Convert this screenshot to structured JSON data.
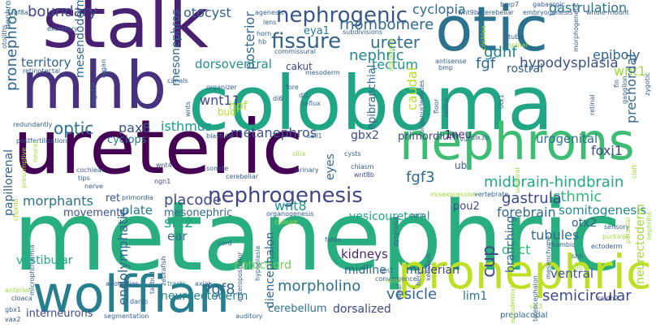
{
  "words": [
    {
      "id": "metanephric",
      "text": "metanephric",
      "color": "#29af7f"
    },
    {
      "id": "coloboma",
      "text": "coloboma",
      "color": "#21a685"
    },
    {
      "id": "ureteric",
      "text": "ureteric",
      "color": "#440154"
    },
    {
      "id": "mhb",
      "text": "mhb",
      "color": "#46327e"
    },
    {
      "id": "stalk",
      "text": "stalk",
      "color": "#482173"
    },
    {
      "id": "otic",
      "text": "otic",
      "color": "#2c728e"
    },
    {
      "id": "nephrons",
      "text": "nephrons",
      "color": "#3fbc73"
    },
    {
      "id": "wolffian",
      "text": "wolffian",
      "color": "#277f8e"
    },
    {
      "id": "pronephric",
      "text": "pronephric",
      "color": "#bddf26"
    },
    {
      "id": "nephrogenesis",
      "text": "nephrogenesis",
      "color": "#404688"
    },
    {
      "id": "nephrogenic",
      "text": "nephrogenic",
      "color": "#39568c"
    },
    {
      "id": "fissure",
      "text": "fissure",
      "color": "#33638d"
    },
    {
      "id": "ureter",
      "text": "ureter",
      "color": "#2c728e"
    },
    {
      "id": "rhombomere",
      "text": "rhombomere",
      "color": "#31688e"
    },
    {
      "id": "gastrulation",
      "text": "gastrulation",
      "color": "#2a788e"
    },
    {
      "id": "cyclopia",
      "text": "cyclopia",
      "color": "#31688e"
    },
    {
      "id": "boundary",
      "text": "boundary",
      "color": "#404688"
    },
    {
      "id": "otocyst",
      "text": "otocyst",
      "color": "#33638d"
    },
    {
      "id": "eya1",
      "text": "eya1",
      "color": "#2a788e"
    },
    {
      "id": "gdnf",
      "text": "gdnf",
      "color": "#26828e"
    },
    {
      "id": "epiboly",
      "text": "epiboly",
      "color": "#31688e"
    },
    {
      "id": "nephric",
      "text": "nephric",
      "color": "#23898e"
    },
    {
      "id": "wnt1",
      "text": "wnt1",
      "color": "#9fda3a"
    },
    {
      "id": "territory",
      "text": "territory",
      "color": "#33638d"
    },
    {
      "id": "fgf",
      "text": "fgf",
      "color": "#31688e"
    },
    {
      "id": "hypodysplasia",
      "text": "hypodysplasia",
      "color": "#3b528b"
    },
    {
      "id": "rostral",
      "text": "rostral",
      "color": "#35608d"
    },
    {
      "id": "tectum",
      "text": "tectum",
      "color": "#1f948c"
    },
    {
      "id": "dorsoventral",
      "text": "dorsoventral",
      "color": "#238a8d"
    },
    {
      "id": "cakut",
      "text": "cakut",
      "color": "#3e4989"
    },
    {
      "id": "wnt11",
      "text": "wnt11",
      "color": "#3e4989"
    },
    {
      "id": "hpf",
      "text": "hpf",
      "color": "#b5de2b"
    },
    {
      "id": "bud",
      "text": "bud",
      "color": "#b5de2b"
    },
    {
      "id": "optic",
      "text": "optic",
      "color": "#2d708e"
    },
    {
      "id": "pax8",
      "text": "pax8",
      "color": "#3b528b"
    },
    {
      "id": "isthmus",
      "text": "isthmus",
      "color": "#1f9a8a"
    },
    {
      "id": "metanephros",
      "text": "metanephros",
      "color": "#3b528b"
    },
    {
      "id": "cyclops",
      "text": "cyclops",
      "color": "#2c728e"
    },
    {
      "id": "gbx2",
      "text": "gbx2",
      "color": "#3e4989"
    },
    {
      "id": "primordium",
      "text": "primordium",
      "color": "#3e4989"
    },
    {
      "id": "1neu",
      "text": "1neu",
      "color": "#482677"
    },
    {
      "id": "urogenital",
      "text": "urogenital",
      "color": "#2c728e"
    },
    {
      "id": "foxi1",
      "text": "foxi1",
      "color": "#3e4989"
    },
    {
      "id": "nephrons2",
      "text": "fgf3",
      "color": "#31688e"
    },
    {
      "id": "midbrain",
      "text": "midbrain-hindbrain",
      "color": "#22a884"
    },
    {
      "id": "isthmic",
      "text": "isthmic",
      "color": "#35b779"
    },
    {
      "id": "morphants",
      "text": "morphants",
      "color": "#2c728e"
    },
    {
      "id": "ret",
      "text": "ret",
      "color": "#3b528b"
    },
    {
      "id": "placode",
      "text": "placode",
      "color": "#3e4989"
    },
    {
      "id": "wnt8",
      "text": "wnt8",
      "color": "#1f948c"
    },
    {
      "id": "gastrula",
      "text": "gastrula",
      "color": "#3e4989"
    },
    {
      "id": "pou2",
      "text": "pou2",
      "color": "#3e4989"
    },
    {
      "id": "somitogenesis",
      "text": "somitogenesis",
      "color": "#23888e"
    },
    {
      "id": "movements",
      "text": "movements",
      "color": "#3b528b"
    },
    {
      "id": "plate",
      "text": "plate",
      "color": "#2a788e"
    },
    {
      "id": "mesonephric",
      "text": "mesonephric",
      "color": "#31688e"
    },
    {
      "id": "vesicoureteral",
      "text": "vesicoureteral",
      "color": "#20a486"
    },
    {
      "id": "forebrain",
      "text": "forebrain",
      "color": "#31688e"
    },
    {
      "id": "otx2",
      "text": "otx2",
      "color": "#33638d"
    },
    {
      "id": "six2",
      "text": "six2",
      "color": "#22a884"
    },
    {
      "id": "ear",
      "text": "ear",
      "color": "#31688e"
    },
    {
      "id": "tubules",
      "text": "tubules",
      "color": "#31688e"
    },
    {
      "id": "duct",
      "text": "duct",
      "color": "#35b779"
    },
    {
      "id": "kidneys",
      "text": "kidneys",
      "color": "#482677"
    },
    {
      "id": "vestibular",
      "text": "vestibular",
      "color": "#22a884"
    },
    {
      "id": "notochord",
      "text": "notochord",
      "color": "#6ccd5a"
    },
    {
      "id": "midline",
      "text": "midline",
      "color": "#33638d"
    },
    {
      "id": "mullerian",
      "text": "mullerian",
      "color": "#3e4989"
    },
    {
      "id": "ventral",
      "text": "ventral",
      "color": "#3b528b"
    },
    {
      "id": "morpholino",
      "text": "morpholino",
      "color": "#2c728e"
    },
    {
      "id": "fgf8",
      "text": "fgf8",
      "color": "#31688e"
    },
    {
      "id": "vesicle",
      "text": "vesicle",
      "color": "#33638d"
    },
    {
      "id": "lim1",
      "text": "lim1",
      "color": "#2c728e"
    },
    {
      "id": "semicircular",
      "text": "semicircular",
      "color": "#3e4989"
    },
    {
      "id": "neuroectoderm",
      "text": "neuroectoderm",
      "color": "#26828e"
    },
    {
      "id": "cerebellum",
      "text": "cerebellum",
      "color": "#2c728e"
    },
    {
      "id": "dorsalized",
      "text": "dorsalized",
      "color": "#3e4989"
    },
    {
      "id": "interneurons",
      "text": "interneurons",
      "color": "#3e4989"
    },
    {
      "id": "preplacodal",
      "text": "preplacodal",
      "color": "#31688e"
    },
    {
      "id": "segmentation",
      "text": "segmentation",
      "color": "#35608d"
    },
    {
      "id": "auditory",
      "text": "auditory",
      "color": "#31688e"
    },
    {
      "id": "danio",
      "text": "danio",
      "color": "#35608d"
    },
    {
      "id": "tracts",
      "text": "tracts",
      "color": "#26828e"
    },
    {
      "id": "axial",
      "text": "axial",
      "color": "#35608d"
    },
    {
      "id": "anomalies",
      "text": "anomalies",
      "color": "#35608d"
    },
    {
      "id": "cloaca",
      "text": "cloaca",
      "color": "#35608d"
    },
    {
      "id": "gbx1",
      "text": "gbx1",
      "color": "#35608d"
    },
    {
      "id": "vax2",
      "text": "vax2",
      "color": "#3e4989"
    },
    {
      "id": "anterior",
      "text": "anterior",
      "color": "#9fda3a"
    },
    {
      "id": "convergence",
      "text": "convergence",
      "color": "#35608d"
    },
    {
      "id": "sonic",
      "text": "sonic",
      "color": "#9fda3a"
    },
    {
      "id": "en1",
      "text": "en1",
      "color": "#35608d"
    },
    {
      "id": "shh",
      "text": "shh",
      "color": "#35608d"
    },
    {
      "id": "fgfs",
      "text": "fgfs",
      "color": "#9fda3a"
    },
    {
      "id": "raldh2",
      "text": "raldh2",
      "color": "#3e4989"
    },
    {
      "id": "six3",
      "text": "six3",
      "color": "#9fda3a"
    },
    {
      "id": "ectoderm",
      "text": "ectoderm",
      "color": "#35608d"
    },
    {
      "id": "purkinje",
      "text": "purkinje",
      "color": "#9fda3a"
    },
    {
      "id": "rhombic",
      "text": "rhombic",
      "color": "#35608d"
    },
    {
      "id": "sensory",
      "text": "sensory",
      "color": "#35608d"
    },
    {
      "id": "cord",
      "text": "cord",
      "color": "#35608d"
    },
    {
      "id": "fates",
      "text": "fates",
      "color": "#35608d"
    },
    {
      "id": "closure",
      "text": "closure",
      "color": "#9fda3a"
    },
    {
      "id": "organogenesis",
      "text": "organogenesis",
      "color": "#35608d"
    },
    {
      "id": "rerio",
      "text": "rerio",
      "color": "#35608d"
    },
    {
      "id": "vertebrate",
      "text": "vertebrate",
      "color": "#35608d"
    },
    {
      "id": "misexpression",
      "text": "misexpression",
      "color": "#9fda3a"
    },
    {
      "id": "primordia",
      "text": "primordia",
      "color": "#35608d"
    },
    {
      "id": "ngn1",
      "text": "ngn1",
      "color": "#3e4989"
    },
    {
      "id": "nerve",
      "text": "nerve",
      "color": "#35608d"
    },
    {
      "id": "tips",
      "text": "tips",
      "color": "#35608d"
    },
    {
      "id": "cochlear",
      "text": "cochlear",
      "color": "#35608d"
    },
    {
      "id": "wnt4",
      "text": "wnt4",
      "color": "#3e4989"
    },
    {
      "id": "somite",
      "text": "somite",
      "color": "#35608d"
    },
    {
      "id": "cerebellar",
      "text": "cerebellar",
      "color": "#35608d"
    },
    {
      "id": "urinary",
      "text": "urinary",
      "color": "#35608d"
    },
    {
      "id": "chiasm",
      "text": "chiasm",
      "color": "#35608d"
    },
    {
      "id": "wnt8b",
      "text": "wnt8b",
      "color": "#3e4989"
    },
    {
      "id": "ub",
      "text": "ub",
      "color": "#35608d"
    },
    {
      "id": "vur",
      "text": "vur",
      "color": "#35608d"
    },
    {
      "id": "dlx3b",
      "text": "dlx3b",
      "color": "#35608d"
    },
    {
      "id": "cysts",
      "text": "cysts",
      "color": "#35608d"
    },
    {
      "id": "sall1",
      "text": "sall1",
      "color": "#35608d"
    },
    {
      "id": "cilia",
      "text": "cilia",
      "color": "#9fda3a"
    },
    {
      "id": "blastula",
      "text": "blastula",
      "color": "#35608d"
    },
    {
      "id": "redundantly",
      "text": "redundantly",
      "color": "#35608d"
    },
    {
      "id": "postfertilization",
      "text": "postfertilization",
      "color": "#35608d"
    },
    {
      "id": "organizer",
      "text": "organizer",
      "color": "#35608d"
    },
    {
      "id": "fore",
      "text": "fore",
      "color": "#35608d"
    },
    {
      "id": "di1",
      "text": "di1",
      "color": "#35608d"
    },
    {
      "id": "di6",
      "text": "di6",
      "color": "#35608d"
    },
    {
      "id": "reflux",
      "text": "reflux",
      "color": "#35608d"
    },
    {
      "id": "canals",
      "text": "canals",
      "color": "#35608d"
    },
    {
      "id": "dv",
      "text": "dv",
      "color": "#35608d"
    },
    {
      "id": "retinotectal",
      "text": "retinotectal",
      "color": "#35608d"
    },
    {
      "id": "excretory",
      "text": "excretory",
      "color": "#35608d"
    },
    {
      "id": "commissural",
      "text": "commissural",
      "color": "#35608d"
    },
    {
      "id": "mesoderm",
      "text": "mesoderm",
      "color": "#35608d"
    },
    {
      "id": "antisense",
      "text": "antisense",
      "color": "#35608d"
    },
    {
      "id": "bmp",
      "text": "bmp",
      "color": "#35608d"
    },
    {
      "id": "tube",
      "text": "tube",
      "color": "#35608d"
    },
    {
      "id": "spinal",
      "text": "spinal",
      "color": "#9fda3a"
    },
    {
      "id": "acerebellar",
      "text": "acerebellar",
      "color": "#35608d"
    },
    {
      "id": "wnt9b",
      "text": "wnt9b",
      "color": "#35608d"
    },
    {
      "id": "bmp7",
      "text": "bmp7",
      "color": "#35608d"
    },
    {
      "id": "embryogenesis",
      "text": "embryogenesis",
      "color": "#35608d"
    },
    {
      "id": "gabaergic",
      "text": "gabaergic",
      "color": "#35608d"
    },
    {
      "id": "wholemount",
      "text": "whole-mount",
      "color": "#35608d"
    },
    {
      "id": "agenesis",
      "text": "agenesis",
      "color": "#35608d"
    },
    {
      "id": "lens",
      "text": "lens",
      "color": "#35608d"
    },
    {
      "id": "subdivisions",
      "text": "subdivisions",
      "color": "#35608d"
    },
    {
      "id": "horn",
      "text": "horn",
      "color": "#35608d"
    },
    {
      "id": "hb",
      "text": "hb",
      "color": "#35608d"
    },
    {
      "id": "fgf8a",
      "text": "fgf8a",
      "color": "#35608d"
    },
    {
      "id": "v_pronephros",
      "text": "pronephros",
      "color": "#31688e"
    },
    {
      "id": "v_notochord2",
      "text": "nephros",
      "color": "#31688e"
    },
    {
      "id": "v_mesendoderm",
      "text": "mesendoderm",
      "color": "#31688e"
    },
    {
      "id": "v_mesonephros",
      "text": "mesonephros",
      "color": "#31688e"
    },
    {
      "id": "v_posterior",
      "text": "posterior",
      "color": "#31688e"
    },
    {
      "id": "v_cup",
      "text": "cup",
      "color": "#3e4989"
    },
    {
      "id": "v_caudal",
      "text": "caudal",
      "color": "#b5de2b"
    },
    {
      "id": "v_epibranchial",
      "text": "epibranchial",
      "color": "#31688e"
    },
    {
      "id": "v_eyes",
      "text": "eyes",
      "color": "#31688e"
    },
    {
      "id": "v_papillorenal",
      "text": "papillorenal",
      "color": "#35608d"
    },
    {
      "id": "v_endolymphatic",
      "text": "endolymphatic",
      "color": "#31688e"
    },
    {
      "id": "v_diencephalon",
      "text": "diencephalon",
      "color": "#31688e"
    },
    {
      "id": "v_prechordal",
      "text": "prechordal",
      "color": "#31688e"
    },
    {
      "id": "v_branching",
      "text": "branching",
      "color": "#31688e"
    },
    {
      "id": "v_neurectoderm",
      "text": "neurectoderm",
      "color": "#9fda3a"
    },
    {
      "id": "v_morphogenetic",
      "text": "morphogenetic",
      "color": "#35608d"
    },
    {
      "id": "v_oligonucleotides",
      "text": "oligonucleotides",
      "color": "#35608d"
    },
    {
      "id": "v_floor",
      "text": "floor",
      "color": "#35608d"
    },
    {
      "id": "v_retina",
      "text": "retina",
      "color": "#35608d"
    },
    {
      "id": "v_retinal",
      "text": "retinal",
      "color": "#35608d"
    },
    {
      "id": "v_hypoplasia",
      "text": "hypoplasia",
      "color": "#35608d"
    },
    {
      "id": "v_anteroposterior",
      "text": "anteroposterior",
      "color": "#35608d"
    },
    {
      "id": "v_microphthalmia",
      "text": "microphthalmia",
      "color": "#35608d"
    },
    {
      "id": "v_wnts",
      "text": "wnts",
      "color": "#35608d"
    },
    {
      "id": "v_notochord3",
      "text": "notochord",
      "color": "#9fda3a"
    },
    {
      "id": "v_fin",
      "text": "fin",
      "color": "#35608d"
    },
    {
      "id": "v_ganglion",
      "text": "ganglion",
      "color": "#35608d"
    },
    {
      "id": "v_zygotic",
      "text": "zygotic",
      "color": "#35608d"
    },
    {
      "id": "v_otx1",
      "text": "otx1",
      "color": "#35608d"
    },
    {
      "id": "v_renal",
      "text": "renal",
      "color": "#35608d"
    },
    {
      "id": "v_hers",
      "text": "hers",
      "color": "#35608d"
    },
    {
      "id": "v_xenopus",
      "text": "xenopus",
      "color": "#35608d"
    },
    {
      "id": "v_mesenchyme",
      "text": "mesenchyme",
      "color": "#35608d"
    },
    {
      "id": "v_telencephalon",
      "text": "telencephalon",
      "color": "#35608d"
    },
    {
      "id": "v_paraxial",
      "text": "paraxial",
      "color": "#9fda3a"
    },
    {
      "id": "v_ectodermal",
      "text": "ectodermal",
      "color": "#9fda3a"
    },
    {
      "id": "v_tailbud",
      "text": "tailbud",
      "color": "#35608d"
    },
    {
      "id": "v_zebrafish",
      "text": "zebrafish",
      "color": "#35608d"
    },
    {
      "id": "v_presumptive",
      "text": "presumptive",
      "color": "#9fda3a"
    },
    {
      "id": "v_neural",
      "text": "neural",
      "color": "#9fda3a"
    },
    {
      "id": "v_chorda",
      "text": "chorda",
      "color": "#9fda3a"
    },
    {
      "id": "v_vegetal",
      "text": "vegetal",
      "color": "#35608d"
    },
    {
      "id": "v_organ",
      "text": "organ",
      "color": "#35608d"
    },
    {
      "id": "v_cleft",
      "text": "cleft",
      "color": "#9fda3a"
    },
    {
      "id": "v_otoliths",
      "text": "otoliths",
      "color": "#35608d"
    },
    {
      "id": "v_nephritis",
      "text": "nephritis",
      "color": "#9fda3a"
    },
    {
      "id": "v_ureteral",
      "text": "ureteral",
      "color": "#9fda3a"
    },
    {
      "id": "v_cochlea",
      "text": "cochlea",
      "color": "#9fda3a"
    },
    {
      "id": "v_dysplasia",
      "text": "dysplasia",
      "color": "#35608d"
    }
  ]
}
